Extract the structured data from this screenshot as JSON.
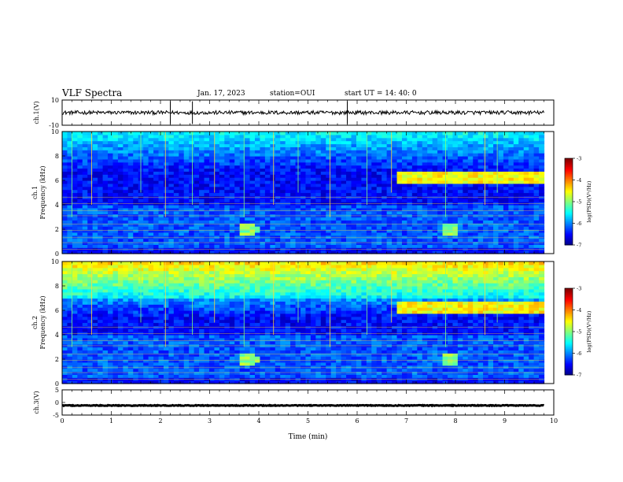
{
  "header": {
    "title": "VLF Spectra",
    "date": "Jan. 17, 2023",
    "station": "station=OUI",
    "start": "start UT =  14: 40: 0"
  },
  "chart_data": [
    {
      "type": "line",
      "ylabel": "ch.1(V)",
      "ylim": [
        -10,
        10
      ],
      "y_ticks": [
        "10",
        "-10"
      ],
      "baseline": 0,
      "noise_amplitude": 1.5,
      "spikes_min": [
        2.2,
        2.65,
        5.8
      ]
    },
    {
      "type": "heatmap",
      "ylabel_line1": "ch.1",
      "ylabel_line2": "Frequency (kHz)",
      "ylim": [
        0,
        10
      ],
      "y_ticks": [
        "0",
        "2",
        "4",
        "6",
        "8",
        "10"
      ],
      "colorbar": {
        "label": "log(PSD)(V²/Hz)",
        "range": [
          -7,
          -3
        ],
        "ticks": [
          "-3",
          "-4",
          "-5",
          "-6",
          "-7"
        ]
      },
      "features": {
        "band_center_khz": 6.3,
        "band_start_min": 6.75,
        "whistler_min": [
          3.75,
          7.85
        ],
        "vertical_lines_min": [
          0.2,
          0.6,
          1.6,
          2.1,
          2.65,
          3.1,
          3.7,
          4.3,
          4.8,
          5.45,
          6.2,
          6.7,
          7.8,
          8.6,
          8.85
        ]
      }
    },
    {
      "type": "heatmap",
      "ylabel_line1": "ch.2",
      "ylabel_line2": "Frequency (kHz)",
      "ylim": [
        0,
        10
      ],
      "y_ticks": [
        "0",
        "2",
        "4",
        "6",
        "8",
        "10"
      ],
      "colorbar": {
        "label": "log(PSD)(V²/Hz)",
        "range": [
          -7,
          -3
        ],
        "ticks": [
          "-3",
          "-4",
          "-5",
          "-6",
          "-7"
        ]
      },
      "features": {
        "band_center_khz": 6.3,
        "band_start_min": 6.75,
        "whistler_min": [
          3.75,
          7.85
        ],
        "vertical_lines_min": [
          0.2,
          0.6,
          1.6,
          2.1,
          2.65,
          3.1,
          3.7,
          4.3,
          4.8,
          5.45,
          6.2,
          6.7,
          7.8,
          8.6,
          8.85
        ]
      }
    },
    {
      "type": "line",
      "ylabel": "ch.3(V)",
      "ylim": [
        -5,
        5
      ],
      "y_ticks": [
        "5",
        "0",
        "-5"
      ],
      "baseline": -1.2,
      "noise_amplitude": 0.15
    }
  ],
  "x_axis": {
    "label": "Time (min)",
    "range": [
      0,
      10
    ],
    "data_end": 9.8,
    "ticks": [
      "0",
      "1",
      "2",
      "3",
      "4",
      "5",
      "6",
      "7",
      "8",
      "9",
      "10"
    ]
  }
}
